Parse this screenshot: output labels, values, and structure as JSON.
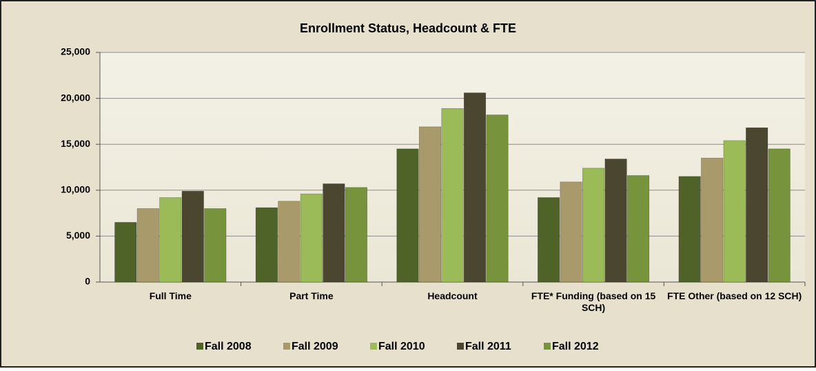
{
  "chart_data": {
    "type": "bar",
    "title": "Enrollment Status, Headcount  & FTE",
    "categories": [
      "Full Time",
      "Part Time",
      "Headcount",
      "FTE* Funding (based on 15 SCH)",
      "FTE Other (based on 12 SCH)"
    ],
    "series": [
      {
        "name": "Fall 2008",
        "color": "#4f6228",
        "values": [
          6500,
          8100,
          14500,
          9200,
          11500
        ]
      },
      {
        "name": "Fall 2009",
        "color": "#a89a6a",
        "values": [
          8000,
          8800,
          16900,
          10900,
          13500
        ]
      },
      {
        "name": "Fall 2010",
        "color": "#9bbb59",
        "values": [
          9200,
          9600,
          18900,
          12400,
          15400
        ]
      },
      {
        "name": "Fall 2011",
        "color": "#4a4630",
        "values": [
          9900,
          10700,
          20600,
          13400,
          16800
        ]
      },
      {
        "name": "Fall 2012",
        "color": "#77933c",
        "values": [
          8000,
          10300,
          18200,
          11600,
          14500
        ]
      }
    ],
    "ylim": [
      0,
      25000
    ],
    "yticks": [
      0,
      {
        "value": 5000,
        "label": "5,000"
      },
      {
        "value": 10000,
        "label": "10,000"
      },
      {
        "value": 15000,
        "label": "15,000"
      },
      {
        "value": 20000,
        "label": "20,000"
      },
      {
        "value": 25000,
        "label": "25,000"
      }
    ],
    "grid": true,
    "legend": "bottom"
  }
}
